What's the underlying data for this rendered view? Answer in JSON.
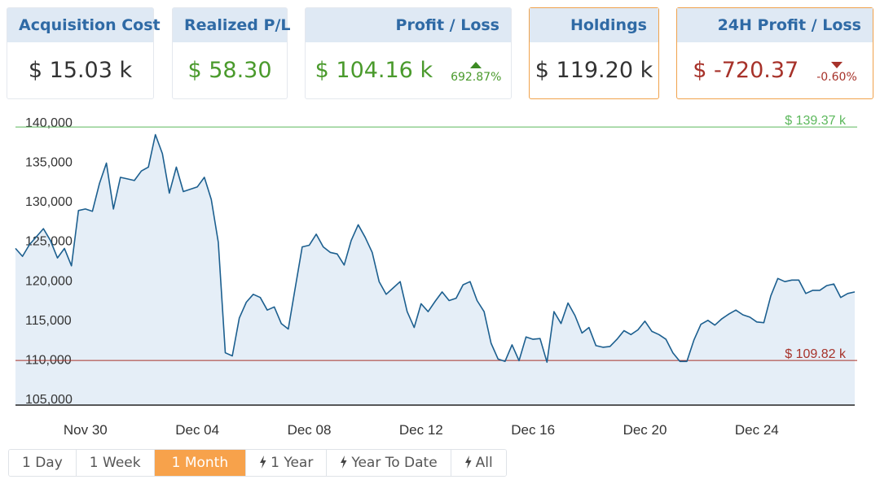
{
  "summary": {
    "acquisition_cost": {
      "label": "Acquisition Cost",
      "value": "$ 15.03 k"
    },
    "realized_pl": {
      "label": "Realized P/L",
      "value": "$ 58.30"
    },
    "profit_loss": {
      "label": "Profit / Loss",
      "value": "$ 104.16 k",
      "change": "692.87%",
      "change_icon": "caret-up-icon",
      "color": "#4a9a2c"
    },
    "holdings": {
      "label": "Holdings",
      "value": "$ 119.20 k"
    },
    "profit_loss_24h": {
      "label": "24H Profit / Loss",
      "value": "$ -720.37",
      "change": "-0.60%",
      "change_icon": "caret-down-icon",
      "color": "#a7322a"
    }
  },
  "ranges": {
    "day": "1 Day",
    "week": "1 Week",
    "month": "1 Month",
    "year": "1 Year",
    "ytd": "Year To Date",
    "all": "All",
    "active": "1 Month",
    "active_color": "#f7a24b"
  },
  "chart_data": {
    "type": "area",
    "x_tick_labels": [
      "Nov 30",
      "Dec 04",
      "Dec 08",
      "Dec 12",
      "Dec 16",
      "Dec 20",
      "Dec 24"
    ],
    "x_tick_days": [
      3,
      7,
      11,
      15,
      19,
      23,
      27
    ],
    "y_ticks": [
      105000,
      110000,
      115000,
      120000,
      125000,
      130000,
      135000,
      140000
    ],
    "y_tick_labels": [
      "105,000",
      "110,000",
      "115,000",
      "120,000",
      "125,000",
      "130,000",
      "135,000",
      "140,000"
    ],
    "ylim": [
      105000,
      140000
    ],
    "xlim": [
      0.5,
      30.5
    ],
    "grid": false,
    "line_color": "#1c5f8f",
    "fill_color": "#e5eef7",
    "max_line": {
      "value": 139370,
      "label": "$ 139.37 k",
      "color": "#5cb85c"
    },
    "min_line": {
      "value": 109820,
      "label": "$ 109.82 k",
      "color": "#a7322a"
    },
    "series": [
      {
        "x": [
          0.5,
          0.75,
          1.0,
          1.25,
          1.5,
          1.75,
          2.0,
          2.25,
          2.5,
          2.75,
          3.0,
          3.25,
          3.5,
          3.75,
          4.0,
          4.25,
          4.5,
          4.75,
          5.0,
          5.25,
          5.5,
          5.75,
          6.0,
          6.25,
          6.5,
          6.75,
          7.0,
          7.25,
          7.5,
          7.75,
          8.0,
          8.25,
          8.5,
          8.75,
          9.0,
          9.25,
          9.5,
          9.75,
          10.0,
          10.25,
          10.5,
          10.75,
          11.0,
          11.25,
          11.5,
          11.75,
          12.0,
          12.25,
          12.5,
          12.75,
          13.0,
          13.25,
          13.5,
          13.75,
          14.0,
          14.25,
          14.5,
          14.75,
          15.0,
          15.25,
          15.5,
          15.75,
          16.0,
          16.25,
          16.5,
          16.75,
          17.0,
          17.25,
          17.5,
          17.75,
          18.0,
          18.25,
          18.5,
          18.75,
          19.0,
          19.25,
          19.5,
          19.75,
          20.0,
          20.25,
          20.5,
          20.75,
          21.0,
          21.25,
          21.5,
          21.75,
          22.0,
          22.25,
          22.5,
          22.75,
          23.0,
          23.25,
          23.5,
          23.75,
          24.0,
          24.25,
          24.5,
          24.75,
          25.0,
          25.25,
          25.5,
          25.75,
          26.0,
          26.25,
          26.5,
          26.75,
          27.0,
          27.25,
          27.5,
          27.75,
          28.0,
          28.25,
          28.5,
          28.75,
          29.0,
          29.25,
          29.5,
          29.75,
          30.0,
          30.25,
          30.5
        ],
        "values": [
          124000,
          123000,
          124500,
          125500,
          126500,
          125000,
          122800,
          124000,
          121800,
          128800,
          129000,
          128700,
          132200,
          134800,
          129000,
          133000,
          132800,
          132600,
          133800,
          134300,
          138400,
          136000,
          131000,
          134300,
          131200,
          131500,
          131800,
          133000,
          130200,
          124800,
          110800,
          110400,
          115200,
          117200,
          118200,
          117800,
          116200,
          116600,
          114500,
          113800,
          119000,
          124200,
          124400,
          125800,
          124200,
          123500,
          123300,
          121900,
          125000,
          127000,
          125400,
          123500,
          119800,
          118200,
          119000,
          119800,
          116000,
          114000,
          117000,
          116000,
          117300,
          118500,
          117400,
          117700,
          119400,
          119800,
          117400,
          116000,
          112000,
          110000,
          109700,
          111800,
          109800,
          112800,
          112500,
          112600,
          109600,
          116000,
          114500,
          117100,
          115500,
          113300,
          114000,
          111700,
          111500,
          111600,
          112500,
          113600,
          113100,
          113700,
          114800,
          113500,
          113100,
          112500,
          110800,
          109700,
          109700,
          112400,
          114400,
          114900,
          114300,
          115100,
          115700,
          116200,
          115600,
          115300,
          114700,
          114600,
          118000,
          120200,
          119800,
          120000,
          120000,
          118300,
          118700,
          118700,
          119300,
          119500,
          117800,
          118300,
          118500
        ]
      }
    ]
  }
}
